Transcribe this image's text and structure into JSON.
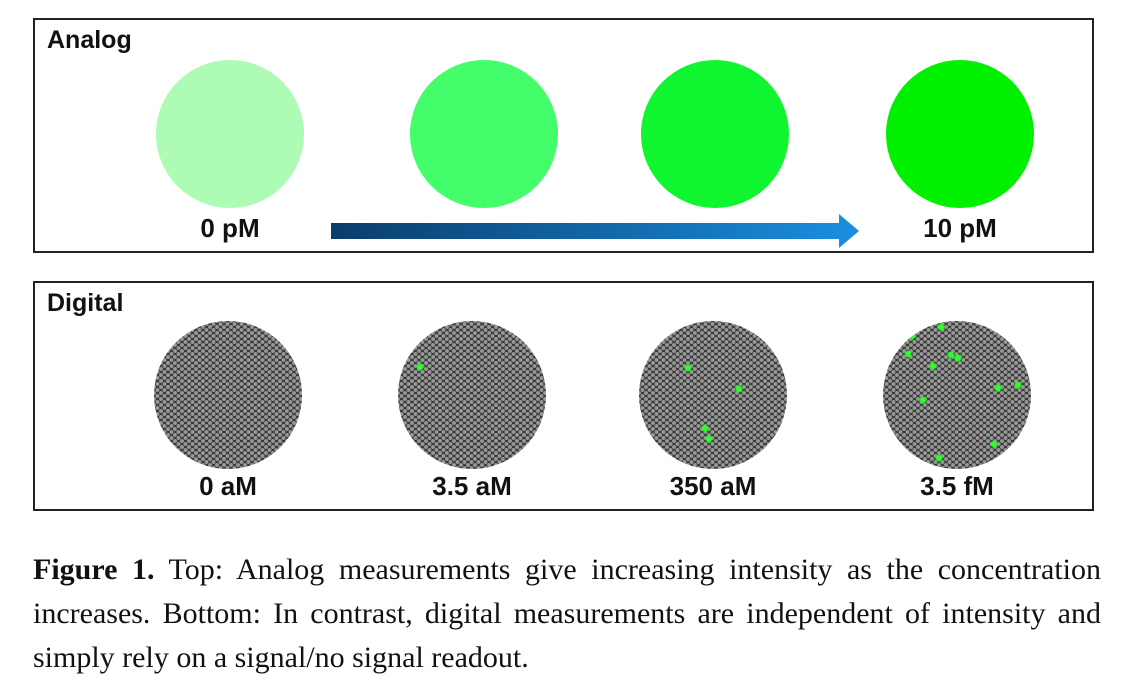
{
  "analog": {
    "title": "Analog",
    "circle_colors": [
      "#adfbb5",
      "#43fd6b",
      "#0ff530",
      "#00f000"
    ],
    "label_low": "0 pM",
    "label_high": "10 pM",
    "arrow_colors": [
      "#0a3d6b",
      "#1a8fe0"
    ]
  },
  "digital": {
    "title": "Digital",
    "labels": [
      "0 aM",
      "3.5 aM",
      "350 aM",
      "3.5 fM"
    ],
    "signal_color": "#2aff2a",
    "background_icon": "hexagonal-bead-array-icon"
  },
  "caption": {
    "label": "Figure 1.",
    "text": " Top: Analog measurements give increasing intensity as the concentration increases. Bottom: In contrast, digital measurements are independent of intensity and simply rely on a signal/no signal readout."
  }
}
